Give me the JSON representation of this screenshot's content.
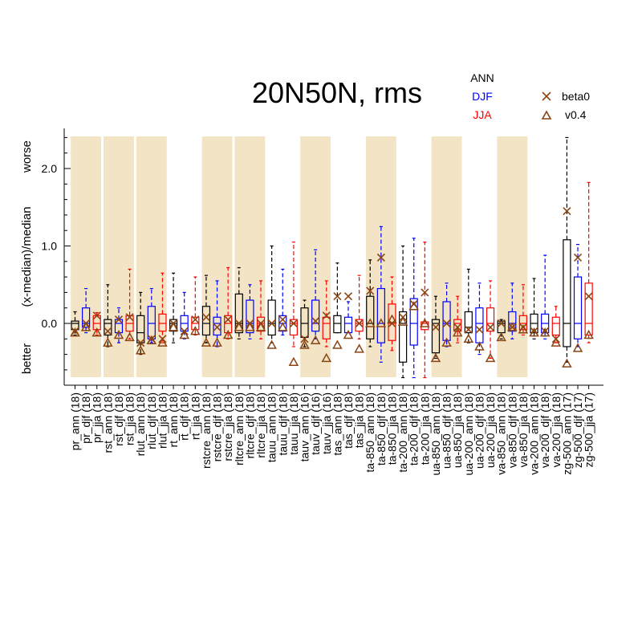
{
  "chart_data": {
    "type": "box",
    "title": "20N50N, rms",
    "ylabel": "(x-median)/median",
    "ylabel_top": "worse",
    "ylabel_bottom": "better",
    "yticks": [
      "0.0",
      "1.0",
      "2.0"
    ],
    "ylim": [
      -0.8,
      2.5
    ],
    "legend": {
      "seasons": [
        {
          "label": "ANN",
          "color": "#000000"
        },
        {
          "label": "DJF",
          "color": "#0000ff"
        },
        {
          "label": "JJA",
          "color": "#ff0000"
        }
      ],
      "markers": [
        {
          "label": "beta0",
          "symbol": "×",
          "color": "#8b4513"
        },
        {
          "label": "v0.4",
          "symbol": "△",
          "color": "#8b4513"
        }
      ]
    },
    "shading_color": "#f2e4c4",
    "shaded_variables": [
      "pr",
      "rst",
      "rlut",
      "rstcre",
      "rltcre",
      "tauv",
      "ta-850",
      "ua-850",
      "va-850"
    ],
    "marker_color": "#8b4513",
    "categories": [
      {
        "label": "pr_ann (18)",
        "var": "pr",
        "season": "ANN",
        "min": -0.15,
        "q1": -0.08,
        "med": 0.0,
        "q3": 0.03,
        "max": 0.15,
        "beta0": -0.1,
        "v04": -0.12
      },
      {
        "label": "pr_djf (18)",
        "var": "pr",
        "season": "DJF",
        "min": -0.12,
        "q1": -0.05,
        "med": 0.0,
        "q3": 0.2,
        "max": 0.45,
        "beta0": 0.0,
        "v04": -0.05
      },
      {
        "label": "pr_jja (18)",
        "var": "pr",
        "season": "JJA",
        "min": -0.15,
        "q1": -0.08,
        "med": 0.0,
        "q3": 0.1,
        "max": 0.14,
        "beta0": 0.1,
        "v04": -0.12
      },
      {
        "label": "rst_ann (18)",
        "var": "rst",
        "season": "ANN",
        "min": -0.3,
        "q1": -0.15,
        "med": 0.0,
        "q3": 0.05,
        "max": 0.5,
        "beta0": -0.1,
        "v04": -0.25
      },
      {
        "label": "rst_djf (18)",
        "var": "rst",
        "season": "DJF",
        "min": -0.25,
        "q1": -0.12,
        "med": 0.0,
        "q3": 0.05,
        "max": 0.2,
        "beta0": 0.05,
        "v04": -0.15
      },
      {
        "label": "rst_jja (18)",
        "var": "rst",
        "season": "JJA",
        "min": -0.2,
        "q1": -0.1,
        "med": 0.0,
        "q3": 0.1,
        "max": 0.7,
        "beta0": 0.08,
        "v04": -0.18
      },
      {
        "label": "rlut_ann (18)",
        "var": "rlut",
        "season": "ANN",
        "min": -0.4,
        "q1": -0.25,
        "med": -0.12,
        "q3": 0.1,
        "max": 0.4,
        "beta0": -0.25,
        "v04": -0.35
      },
      {
        "label": "rlut_djf (18)",
        "var": "rlut",
        "season": "DJF",
        "min": -0.25,
        "q1": -0.2,
        "med": 0.0,
        "q3": 0.22,
        "max": 0.45,
        "beta0": -0.2,
        "v04": -0.22
      },
      {
        "label": "rlut_jja (18)",
        "var": "rlut",
        "season": "JJA",
        "min": -0.25,
        "q1": -0.1,
        "med": 0.0,
        "q3": 0.12,
        "max": 0.65,
        "beta0": -0.2,
        "v04": -0.25
      },
      {
        "label": "rt_ann (18)",
        "var": "rt",
        "season": "ANN",
        "min": -0.25,
        "q1": -0.1,
        "med": 0.0,
        "q3": 0.05,
        "max": 0.65,
        "beta0": 0.0,
        "v04": -0.05
      },
      {
        "label": "rt_djf (18)",
        "var": "rt",
        "season": "DJF",
        "min": -0.2,
        "q1": -0.1,
        "med": 0.0,
        "q3": 0.1,
        "max": 0.4,
        "beta0": -0.1,
        "v04": -0.15
      },
      {
        "label": "rt_jja (18)",
        "var": "rt",
        "season": "JJA",
        "min": -0.15,
        "q1": -0.08,
        "med": 0.0,
        "q3": 0.08,
        "max": 0.6,
        "beta0": 0.05,
        "v04": -0.1
      },
      {
        "label": "rstcre_ann (18)",
        "var": "rstcre",
        "season": "ANN",
        "min": -0.25,
        "q1": -0.15,
        "med": 0.0,
        "q3": 0.22,
        "max": 0.62,
        "beta0": 0.08,
        "v04": -0.25
      },
      {
        "label": "rstcre_djf (18)",
        "var": "rstcre",
        "season": "DJF",
        "min": -0.3,
        "q1": -0.15,
        "med": 0.0,
        "q3": 0.08,
        "max": 0.55,
        "beta0": -0.05,
        "v04": -0.25
      },
      {
        "label": "rstcre_jja (18)",
        "var": "rstcre",
        "season": "JJA",
        "min": -0.2,
        "q1": -0.12,
        "med": 0.0,
        "q3": 0.1,
        "max": 0.72,
        "beta0": 0.05,
        "v04": -0.15
      },
      {
        "label": "rltcre_ann (18)",
        "var": "rltcre",
        "season": "ANN",
        "min": -0.2,
        "q1": -0.12,
        "med": 0.0,
        "q3": 0.38,
        "max": 0.72,
        "beta0": 0.0,
        "v04": -0.05
      },
      {
        "label": "rltcre_djf (18)",
        "var": "rltcre",
        "season": "DJF",
        "min": -0.2,
        "q1": -0.12,
        "med": 0.0,
        "q3": 0.3,
        "max": 0.5,
        "beta0": 0.0,
        "v04": -0.05
      },
      {
        "label": "rltcre_jja (18)",
        "var": "rltcre",
        "season": "JJA",
        "min": -0.2,
        "q1": -0.1,
        "med": 0.0,
        "q3": 0.08,
        "max": 0.55,
        "beta0": 0.0,
        "v04": -0.05
      },
      {
        "label": "tauu_ann (18)",
        "var": "tauu",
        "season": "ANN",
        "min": -0.25,
        "q1": -0.15,
        "med": 0.0,
        "q3": 0.3,
        "max": 1.0,
        "beta0": 0.0,
        "v04": -0.28
      },
      {
        "label": "tauu_djf (18)",
        "var": "tauu",
        "season": "DJF",
        "min": -0.15,
        "q1": -0.1,
        "med": 0.0,
        "q3": 0.1,
        "max": 0.7,
        "beta0": 0.05,
        "v04": -0.05
      },
      {
        "label": "tauu_jja (18)",
        "var": "tauu",
        "season": "JJA",
        "min": -0.3,
        "q1": -0.15,
        "med": 0.0,
        "q3": 0.05,
        "max": 1.05,
        "beta0": 0.0,
        "v04": -0.5
      },
      {
        "label": "tauv_ann (16)",
        "var": "tauv",
        "season": "ANN",
        "min": -0.3,
        "q1": -0.18,
        "med": 0.0,
        "q3": 0.2,
        "max": 0.3,
        "beta0": -0.2,
        "v04": -0.28
      },
      {
        "label": "tauv_djf (16)",
        "var": "tauv",
        "season": "DJF",
        "min": -0.2,
        "q1": -0.1,
        "med": 0.0,
        "q3": 0.3,
        "max": 0.95,
        "beta0": 0.03,
        "v04": -0.22
      },
      {
        "label": "tauv_jja (16)",
        "var": "tauv",
        "season": "JJA",
        "min": -0.3,
        "q1": -0.2,
        "med": 0.0,
        "q3": 0.08,
        "max": 0.55,
        "beta0": 0.1,
        "v04": -0.45
      },
      {
        "label": "tas_ann (18)",
        "var": "tas",
        "season": "ANN",
        "min": -0.12,
        "q1": -0.12,
        "med": 0.0,
        "q3": 0.1,
        "max": 0.78,
        "beta0": 0.35,
        "v04": -0.28
      },
      {
        "label": "tas_djf (18)",
        "var": "tas",
        "season": "DJF",
        "min": -0.12,
        "q1": -0.12,
        "med": 0.0,
        "q3": 0.08,
        "max": 0.28,
        "beta0": 0.35,
        "v04": -0.15
      },
      {
        "label": "tas_jja (18)",
        "var": "tas",
        "season": "JJA",
        "min": -0.2,
        "q1": -0.1,
        "med": 0.0,
        "q3": 0.05,
        "max": 0.62,
        "beta0": 0.0,
        "v04": -0.33
      },
      {
        "label": "ta-850_ann (18)",
        "var": "ta-850",
        "season": "ANN",
        "min": -0.3,
        "q1": -0.2,
        "med": 0.0,
        "q3": 0.35,
        "max": 0.82,
        "beta0": 0.42,
        "v04": 0.0
      },
      {
        "label": "ta-850_djf (18)",
        "var": "ta-850",
        "season": "DJF",
        "min": -0.5,
        "q1": -0.25,
        "med": 0.0,
        "q3": 0.45,
        "max": 1.25,
        "beta0": 0.85,
        "v04": 0.0
      },
      {
        "label": "ta-850_jja (18)",
        "var": "ta-850",
        "season": "JJA",
        "min": -0.35,
        "q1": -0.22,
        "med": 0.0,
        "q3": 0.25,
        "max": 0.6,
        "beta0": 0.0,
        "v04": 0.05
      },
      {
        "label": "ta-200_ann (18)",
        "var": "ta-200",
        "season": "ANN",
        "min": -0.7,
        "q1": -0.5,
        "med": 0.0,
        "q3": 0.15,
        "max": 1.0,
        "beta0": 0.08,
        "v04": 0.02
      },
      {
        "label": "ta-200_djf (18)",
        "var": "ta-200",
        "season": "DJF",
        "min": -0.7,
        "q1": -0.28,
        "med": 0.0,
        "q3": 0.32,
        "max": 1.1,
        "beta0": 0.25,
        "v04": 0.22
      },
      {
        "label": "ta-200_jja (18)",
        "var": "ta-200",
        "season": "JJA",
        "min": -0.7,
        "q1": -0.08,
        "med": 0.0,
        "q3": 0.02,
        "max": 1.05,
        "beta0": 0.4,
        "v04": 0.0
      },
      {
        "label": "ua-850_ann (18)",
        "var": "ua-850",
        "season": "ANN",
        "min": -0.45,
        "q1": -0.38,
        "med": 0.0,
        "q3": 0.05,
        "max": 0.35,
        "beta0": -0.05,
        "v04": -0.45
      },
      {
        "label": "ua-850_djf (18)",
        "var": "ua-850",
        "season": "DJF",
        "min": -0.3,
        "q1": -0.22,
        "med": 0.0,
        "q3": 0.28,
        "max": 0.52,
        "beta0": 0.0,
        "v04": -0.25
      },
      {
        "label": "ua-850_jja (18)",
        "var": "ua-850",
        "season": "JJA",
        "min": -0.25,
        "q1": -0.1,
        "med": 0.0,
        "q3": 0.05,
        "max": 0.35,
        "beta0": -0.05,
        "v04": -0.12
      },
      {
        "label": "ua-200_ann (18)",
        "var": "ua-200",
        "season": "ANN",
        "min": -0.25,
        "q1": -0.12,
        "med": -0.05,
        "q3": 0.15,
        "max": 0.7,
        "beta0": -0.08,
        "v04": -0.2
      },
      {
        "label": "ua-200_djf (18)",
        "var": "ua-200",
        "season": "DJF",
        "min": -0.4,
        "q1": -0.25,
        "med": 0.0,
        "q3": 0.2,
        "max": 0.52,
        "beta0": -0.08,
        "v04": -0.3
      },
      {
        "label": "ua-200_jja (18)",
        "var": "ua-200",
        "season": "JJA",
        "min": -0.45,
        "q1": -0.1,
        "med": 0.0,
        "q3": 0.2,
        "max": 0.55,
        "beta0": -0.05,
        "v04": -0.45
      },
      {
        "label": "va-850_ann (18)",
        "var": "va-850",
        "season": "ANN",
        "min": -0.2,
        "q1": -0.12,
        "med": 0.0,
        "q3": 0.03,
        "max": 0.05,
        "beta0": 0.0,
        "v04": -0.18
      },
      {
        "label": "va-850_djf (18)",
        "var": "va-850",
        "season": "DJF",
        "min": -0.2,
        "q1": -0.1,
        "med": 0.0,
        "q3": 0.15,
        "max": 0.52,
        "beta0": -0.05,
        "v04": -0.05
      },
      {
        "label": "va-850_jja (18)",
        "var": "va-850",
        "season": "JJA",
        "min": -0.15,
        "q1": -0.08,
        "med": 0.0,
        "q3": 0.1,
        "max": 0.5,
        "beta0": -0.05,
        "v04": -0.08
      },
      {
        "label": "va-200_ann (18)",
        "var": "va-200",
        "season": "ANN",
        "min": -0.2,
        "q1": -0.12,
        "med": 0.0,
        "q3": 0.12,
        "max": 0.58,
        "beta0": -0.1,
        "v04": -0.12
      },
      {
        "label": "va-200_djf (18)",
        "var": "va-200",
        "season": "DJF",
        "min": -0.2,
        "q1": -0.12,
        "med": 0.0,
        "q3": 0.12,
        "max": 0.88,
        "beta0": -0.1,
        "v04": -0.12
      },
      {
        "label": "va-200_jja (18)",
        "var": "va-200",
        "season": "JJA",
        "min": -0.25,
        "q1": -0.15,
        "med": 0.0,
        "q3": 0.08,
        "max": 0.22,
        "beta0": -0.2,
        "v04": -0.25
      },
      {
        "label": "zg-500_ann (17)",
        "var": "zg-500",
        "season": "ANN",
        "min": -0.5,
        "q1": -0.3,
        "med": 0.0,
        "q3": 1.08,
        "max": 2.4,
        "beta0": 1.45,
        "v04": -0.52
      },
      {
        "label": "zg-500_djf (17)",
        "var": "zg-500",
        "season": "DJF",
        "min": -0.3,
        "q1": -0.2,
        "med": 0.0,
        "q3": 0.6,
        "max": 1.02,
        "beta0": 0.85,
        "v04": -0.32
      },
      {
        "label": "zg-500_jja (17)",
        "var": "zg-500",
        "season": "JJA",
        "min": -0.25,
        "q1": -0.15,
        "med": 0.0,
        "q3": 0.52,
        "max": 1.82,
        "beta0": 0.35,
        "v04": -0.15
      }
    ]
  }
}
